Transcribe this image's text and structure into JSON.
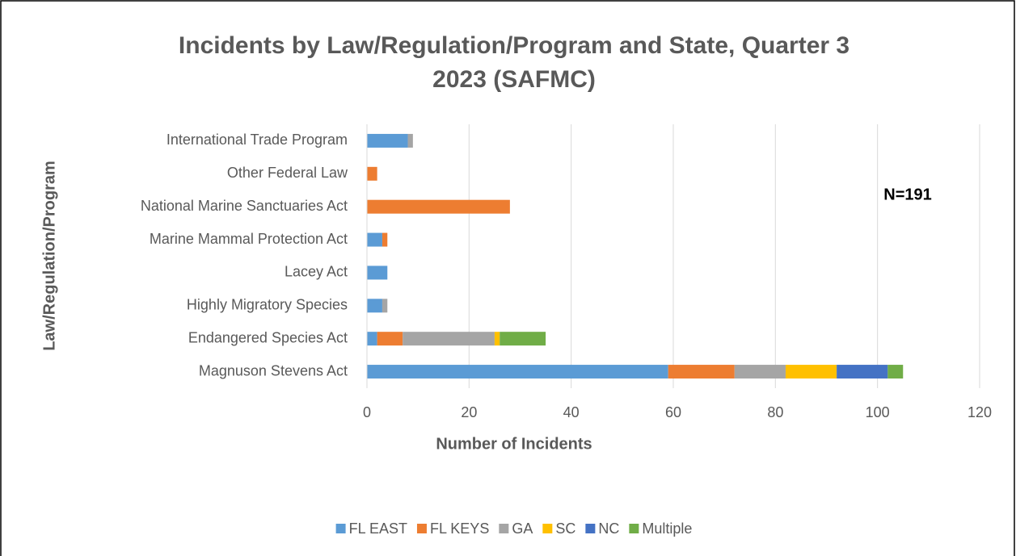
{
  "chart_data": {
    "type": "stacked-bar-horizontal",
    "title": "Incidents by Law/Regulation/Program and State, Quarter 3 2023 (SAFMC)",
    "x_label": "Number of Incidents",
    "y_label": "Law/Regulation/Program",
    "annotation": "N=191",
    "categories": [
      "International Trade Program",
      "Other Federal Law",
      "National Marine Sanctuaries Act",
      "Marine Mammal Protection Act",
      "Lacey Act",
      "Highly Migratory Species",
      "Endangered Species Act",
      "Magnuson Stevens Act"
    ],
    "series": [
      {
        "name": "FL EAST",
        "color": "#5b9bd5",
        "values": [
          8,
          0,
          0,
          3,
          4,
          3,
          2,
          59
        ]
      },
      {
        "name": "FL KEYS",
        "color": "#ed7d31",
        "values": [
          0,
          2,
          28,
          1,
          0,
          0,
          5,
          13
        ]
      },
      {
        "name": "GA",
        "color": "#a5a5a5",
        "values": [
          1,
          0,
          0,
          0,
          0,
          1,
          18,
          10
        ]
      },
      {
        "name": "SC",
        "color": "#ffc000",
        "values": [
          0,
          0,
          0,
          0,
          0,
          0,
          1,
          10
        ]
      },
      {
        "name": "NC",
        "color": "#4472c4",
        "values": [
          0,
          0,
          0,
          0,
          0,
          0,
          0,
          10
        ]
      },
      {
        "name": "Multiple",
        "color": "#70ad47",
        "values": [
          0,
          0,
          0,
          0,
          0,
          0,
          9,
          3
        ]
      }
    ],
    "xlim": [
      0,
      120
    ],
    "xticks": [
      0,
      20,
      40,
      60,
      80,
      100,
      120
    ],
    "grid": true,
    "legend": "bottom"
  }
}
